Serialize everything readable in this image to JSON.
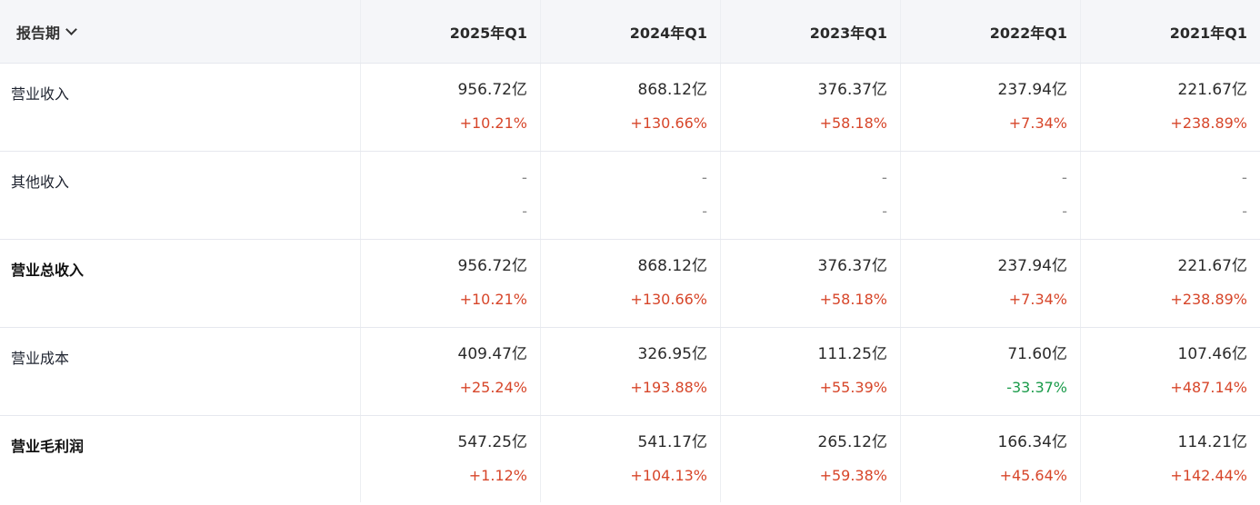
{
  "header": {
    "period_label": "报告期",
    "periods": [
      "2025年Q1",
      "2024年Q1",
      "2023年Q1",
      "2022年Q1",
      "2021年Q1"
    ]
  },
  "rows": [
    {
      "label": "营业收入",
      "values": [
        "956.72亿",
        "868.12亿",
        "376.37亿",
        "237.94亿",
        "221.67亿"
      ],
      "changes": [
        "+10.21%",
        "+130.66%",
        "+58.18%",
        "+7.34%",
        "+238.89%"
      ]
    },
    {
      "label": "其他收入",
      "values": [
        "-",
        "-",
        "-",
        "-",
        "-"
      ],
      "changes": [
        "-",
        "-",
        "-",
        "-",
        "-"
      ]
    },
    {
      "label": "营业总收入",
      "values": [
        "956.72亿",
        "868.12亿",
        "376.37亿",
        "237.94亿",
        "221.67亿"
      ],
      "changes": [
        "+10.21%",
        "+130.66%",
        "+58.18%",
        "+7.34%",
        "+238.89%"
      ]
    },
    {
      "label": "营业成本",
      "values": [
        "409.47亿",
        "326.95亿",
        "111.25亿",
        "71.60亿",
        "107.46亿"
      ],
      "changes": [
        "+25.24%",
        "+193.88%",
        "+55.39%",
        "-33.37%",
        "+487.14%"
      ]
    },
    {
      "label": "营业毛利润",
      "values": [
        "547.25亿",
        "541.17亿",
        "265.12亿",
        "166.34亿",
        "114.21亿"
      ],
      "changes": [
        "+1.12%",
        "+104.13%",
        "+59.38%",
        "+45.64%",
        "+142.44%"
      ]
    }
  ],
  "colors": {
    "positive": "#d7462a",
    "negative": "#1a9b4a",
    "header_bg": "#f5f6f9"
  }
}
